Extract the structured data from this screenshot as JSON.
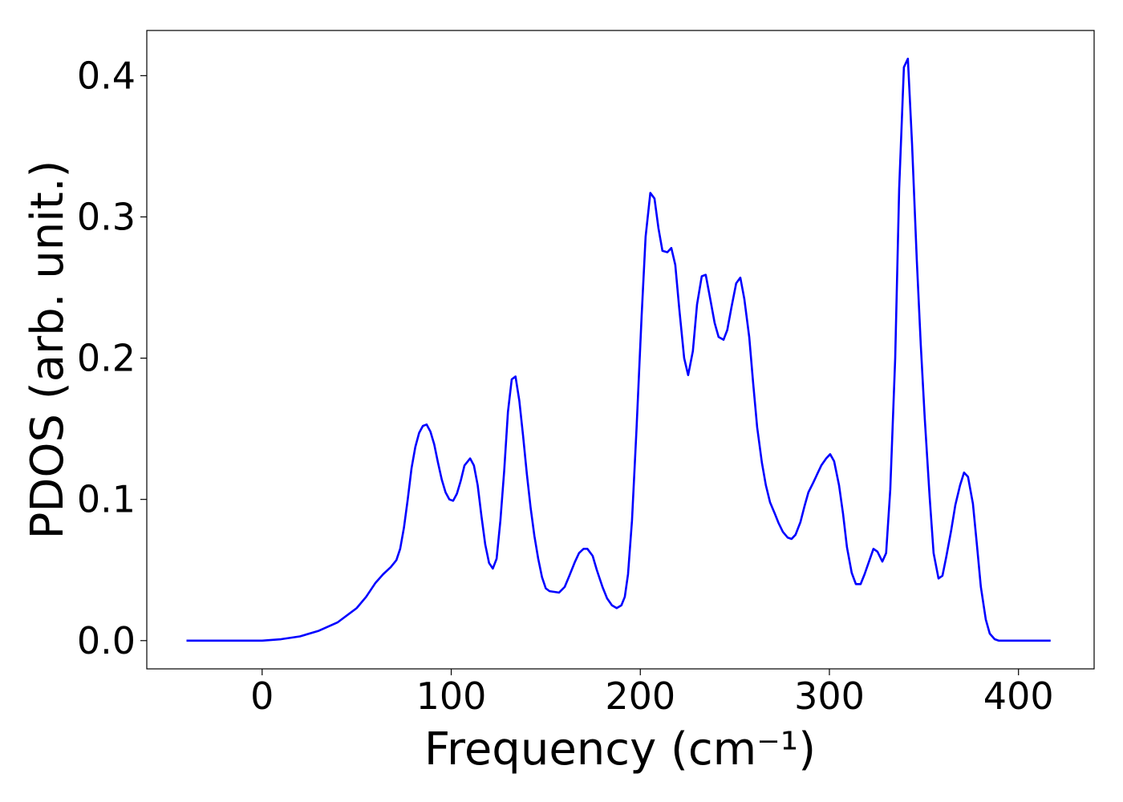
{
  "chart_data": {
    "type": "line",
    "xlabel": "Frequency (cm⁻¹)",
    "ylabel": "PDOS (arb. unit.)",
    "xlim": [
      -61,
      440
    ],
    "ylim": [
      -0.02,
      0.432
    ],
    "xticks": [
      0,
      100,
      200,
      300,
      400
    ],
    "yticks": [
      {
        "value": 0,
        "label": "0.0"
      },
      0.1,
      0.2,
      0.3,
      0.4
    ],
    "grid": false,
    "series": [
      {
        "color": "#0000ff",
        "x": [
          -40,
          0,
          10,
          20,
          30,
          40,
          50,
          55,
          60,
          64,
          68,
          71,
          73,
          75,
          77,
          79,
          81,
          83,
          85,
          87,
          89,
          91,
          93,
          95,
          97,
          99,
          101,
          103,
          105,
          107,
          110,
          112,
          114,
          116,
          118,
          120,
          122,
          124,
          126,
          128,
          130,
          132,
          134,
          136,
          138,
          140,
          142,
          144,
          146,
          148,
          150,
          152,
          157,
          160,
          162.5,
          165.5,
          167.6,
          170,
          172,
          174.8,
          177,
          180,
          182.4,
          185,
          187.5,
          190,
          191.8,
          193.5,
          195.6,
          198,
          200.7,
          202.8,
          205.3,
          207.5,
          209.6,
          211.7,
          214.3,
          216.4,
          218.5,
          220.6,
          223.2,
          225.3,
          227.8,
          230,
          232.5,
          234.6,
          236.7,
          239.3,
          241.4,
          244,
          246,
          248.2,
          250.7,
          252.9,
          255,
          257.6,
          259.7,
          261.8,
          264.3,
          266.4,
          268.6,
          271.1,
          273.2,
          275.4,
          277.9,
          280,
          282.1,
          284.7,
          286.8,
          288.9,
          291.5,
          293.6,
          295.7,
          298.3,
          300.4,
          302.5,
          305.1,
          307.2,
          309.3,
          311.8,
          314,
          316.5,
          318.6,
          321.2,
          323.3,
          325.4,
          328,
          330,
          332.2,
          334.8,
          336.9,
          339.4,
          341.5,
          343.7,
          346.2,
          348.3,
          350.4,
          353,
          355.1,
          357.7,
          359.8,
          361.9,
          364.4,
          366.6,
          369.1,
          371.2,
          373.3,
          375.9,
          378,
          380.1,
          382.7,
          384.8,
          387.4,
          389.5,
          417
        ],
        "values": [
          0,
          0,
          0.001,
          0.003,
          0.007,
          0.013,
          0.023,
          0.031,
          0.041,
          0.047,
          0.052,
          0.057,
          0.065,
          0.08,
          0.1,
          0.122,
          0.137,
          0.147,
          0.152,
          0.153,
          0.148,
          0.139,
          0.126,
          0.114,
          0.105,
          0.1,
          0.099,
          0.104,
          0.113,
          0.124,
          0.129,
          0.124,
          0.11,
          0.088,
          0.068,
          0.055,
          0.051,
          0.058,
          0.085,
          0.12,
          0.162,
          0.185,
          0.187,
          0.17,
          0.145,
          0.118,
          0.094,
          0.074,
          0.058,
          0.045,
          0.037,
          0.035,
          0.034,
          0.038,
          0.046,
          0.056,
          0.062,
          0.065,
          0.065,
          0.06,
          0.05,
          0.038,
          0.03,
          0.025,
          0.023,
          0.025,
          0.031,
          0.047,
          0.085,
          0.15,
          0.23,
          0.286,
          0.317,
          0.313,
          0.292,
          0.276,
          0.275,
          0.278,
          0.266,
          0.235,
          0.2,
          0.188,
          0.205,
          0.238,
          0.258,
          0.259,
          0.244,
          0.225,
          0.215,
          0.213,
          0.22,
          0.236,
          0.253,
          0.257,
          0.242,
          0.215,
          0.182,
          0.151,
          0.126,
          0.11,
          0.098,
          0.09,
          0.083,
          0.077,
          0.073,
          0.072,
          0.075,
          0.084,
          0.095,
          0.105,
          0.112,
          0.118,
          0.124,
          0.129,
          0.132,
          0.127,
          0.11,
          0.09,
          0.066,
          0.048,
          0.04,
          0.04,
          0.047,
          0.057,
          0.065,
          0.063,
          0.056,
          0.062,
          0.107,
          0.2,
          0.32,
          0.406,
          0.412,
          0.352,
          0.27,
          0.21,
          0.158,
          0.102,
          0.062,
          0.044,
          0.046,
          0.06,
          0.078,
          0.096,
          0.11,
          0.119,
          0.116,
          0.097,
          0.068,
          0.038,
          0.015,
          0.005,
          0.001,
          0,
          0
        ]
      }
    ]
  }
}
